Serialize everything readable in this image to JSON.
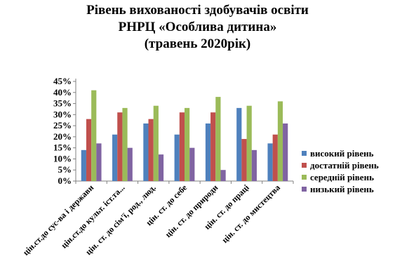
{
  "chart_data": {
    "type": "bar",
    "title_lines": [
      "Рівень вихованості здобувачів освіти",
      "РНРЦ «Особлива дитина»",
      "(травень 2020рік)"
    ],
    "categories": [
      "цін.ст.до сус-ва і держави",
      "цін.ст.до культ. іст.та...",
      "цін. ст. до сім'ї, род., люд.",
      "цін. ст. до себе",
      "цін. ст. до природи",
      "цін. ст. до праці",
      "цін. ст. до мистецтва"
    ],
    "series": [
      {
        "name": "високий рівень",
        "color": "#4f81bd",
        "values": [
          14,
          21,
          26,
          21,
          26,
          33,
          17
        ]
      },
      {
        "name": "достатній рівень",
        "color": "#c0504d",
        "values": [
          28,
          31,
          28,
          31,
          31,
          19,
          21
        ]
      },
      {
        "name": "середній рівень",
        "color": "#9bbb59",
        "values": [
          41,
          33,
          34,
          33,
          38,
          34,
          36
        ]
      },
      {
        "name": "низький рівень",
        "color": "#8064a2",
        "values": [
          17,
          15,
          12,
          15,
          5,
          14,
          26
        ]
      }
    ],
    "ylim": [
      0,
      45
    ],
    "ytick_step": 5,
    "y_unit": "%",
    "legend_position": "right",
    "grid": false
  }
}
